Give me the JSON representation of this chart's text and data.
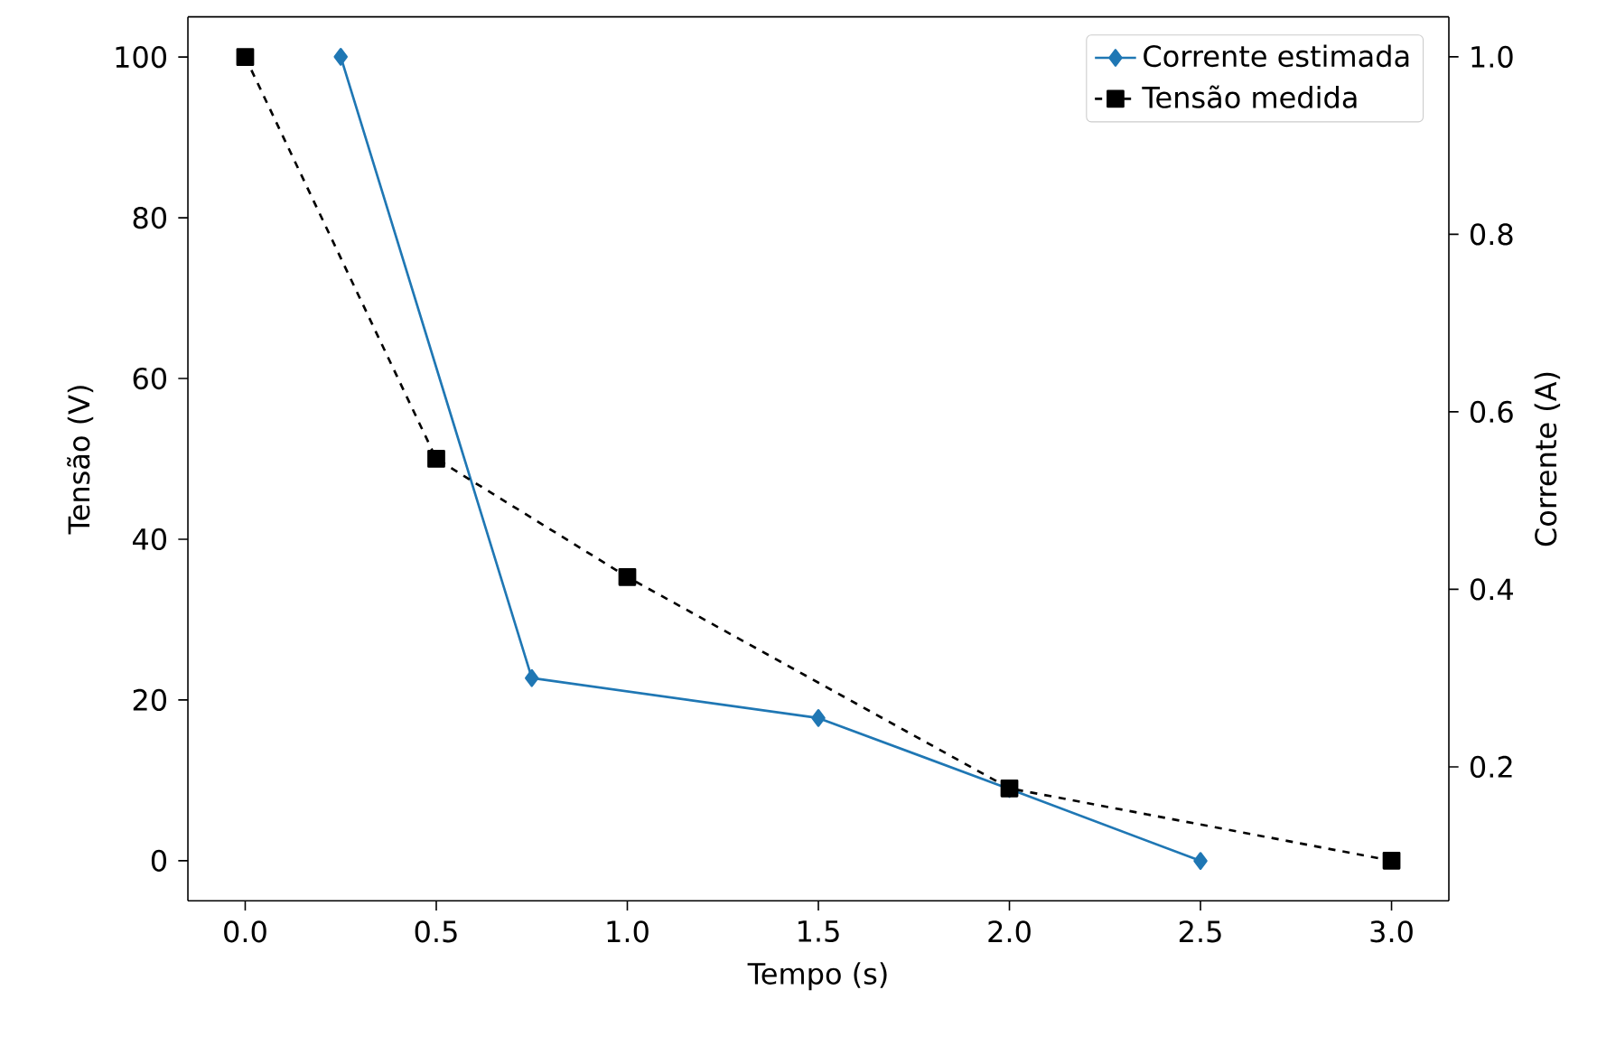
{
  "chart_data": {
    "type": "line",
    "xlabel": "Tempo (s)",
    "ylabel": "Tensão (V)",
    "y2label": "Corrente (A)",
    "xlim": [
      -0.15,
      3.15
    ],
    "xticks": [
      {
        "value": 0,
        "label": "0.0"
      },
      0.5,
      {
        "value": 1,
        "label": "1.0"
      },
      1.5,
      {
        "value": 2,
        "label": "2.0"
      },
      2.5,
      {
        "value": 3,
        "label": "3.0"
      }
    ],
    "ylim": [
      -5,
      105
    ],
    "yticks": [
      0,
      20,
      40,
      60,
      80,
      100
    ],
    "y2lim": [
      0.049,
      1.045
    ],
    "y2ticks": [
      0.2,
      0.4,
      0.6,
      0.8,
      {
        "value": 1,
        "label": "1.0"
      }
    ],
    "legend": "top right",
    "grid": false,
    "series": [
      {
        "name": "Corrente estimada",
        "color": "#1f77b4",
        "axis": "y2",
        "marker": "diamond",
        "line_style": "solid",
        "x": [
          0.25,
          0.75,
          1.5,
          2.0,
          2.5
        ],
        "values": [
          1.0,
          0.3,
          0.255,
          0.175,
          0.094
        ]
      },
      {
        "name": "Tensão medida",
        "color": "#000000",
        "marker": "square",
        "line_style": "dashed",
        "x": [
          0,
          0.5,
          1.0,
          2.0,
          3.0
        ],
        "values": [
          100,
          50,
          35.3,
          9,
          0
        ]
      }
    ]
  }
}
